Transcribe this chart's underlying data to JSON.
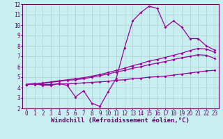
{
  "xlabel": "Windchill (Refroidissement éolien,°C)",
  "xlim": [
    -0.5,
    23.5
  ],
  "ylim": [
    2,
    12
  ],
  "xticks": [
    0,
    1,
    2,
    3,
    4,
    5,
    6,
    7,
    8,
    9,
    10,
    11,
    12,
    13,
    14,
    15,
    16,
    17,
    18,
    19,
    20,
    21,
    22,
    23
  ],
  "yticks": [
    2,
    3,
    4,
    5,
    6,
    7,
    8,
    9,
    10,
    11,
    12
  ],
  "bg_color": "#c8eef0",
  "line_color": "#990099",
  "grid_color": "#aacccc",
  "line1_x": [
    0,
    1,
    2,
    3,
    4,
    5,
    6,
    7,
    8,
    9,
    10,
    11,
    12,
    13,
    14,
    15,
    16,
    17,
    18,
    19,
    20,
    21,
    22,
    23
  ],
  "line1_y": [
    4.3,
    4.4,
    4.2,
    4.2,
    4.4,
    4.2,
    3.1,
    3.7,
    2.5,
    2.2,
    3.6,
    4.9,
    7.8,
    10.4,
    11.2,
    11.8,
    11.6,
    9.8,
    10.4,
    9.8,
    8.7,
    8.7,
    8.0,
    7.6
  ],
  "line2_x": [
    0,
    1,
    2,
    3,
    4,
    5,
    6,
    7,
    8,
    9,
    10,
    11,
    12,
    13,
    14,
    15,
    16,
    17,
    18,
    19,
    20,
    21,
    22,
    23
  ],
  "line2_y": [
    4.3,
    4.3,
    4.3,
    4.3,
    4.35,
    4.35,
    4.4,
    4.45,
    4.5,
    4.55,
    4.6,
    4.7,
    4.75,
    4.85,
    4.9,
    5.0,
    5.05,
    5.1,
    5.2,
    5.3,
    5.4,
    5.5,
    5.6,
    5.65
  ],
  "line3_x": [
    0,
    1,
    2,
    3,
    4,
    5,
    6,
    7,
    8,
    9,
    10,
    11,
    12,
    13,
    14,
    15,
    16,
    17,
    18,
    19,
    20,
    21,
    22,
    23
  ],
  "line3_y": [
    4.3,
    4.35,
    4.4,
    4.5,
    4.6,
    4.7,
    4.75,
    4.85,
    5.0,
    5.15,
    5.3,
    5.5,
    5.65,
    5.85,
    6.0,
    6.2,
    6.35,
    6.5,
    6.7,
    6.85,
    7.0,
    7.15,
    7.1,
    6.8
  ],
  "line4_x": [
    0,
    1,
    2,
    3,
    4,
    5,
    6,
    7,
    8,
    9,
    10,
    11,
    12,
    13,
    14,
    15,
    16,
    17,
    18,
    19,
    20,
    21,
    22,
    23
  ],
  "line4_y": [
    4.3,
    4.35,
    4.45,
    4.55,
    4.65,
    4.75,
    4.85,
    4.95,
    5.1,
    5.25,
    5.45,
    5.65,
    5.85,
    6.1,
    6.3,
    6.55,
    6.7,
    6.9,
    7.1,
    7.3,
    7.55,
    7.75,
    7.7,
    7.4
  ],
  "marker": "D",
  "markersize": 2,
  "linewidth": 0.9,
  "tick_fontsize": 5.5,
  "label_fontsize": 6.5
}
